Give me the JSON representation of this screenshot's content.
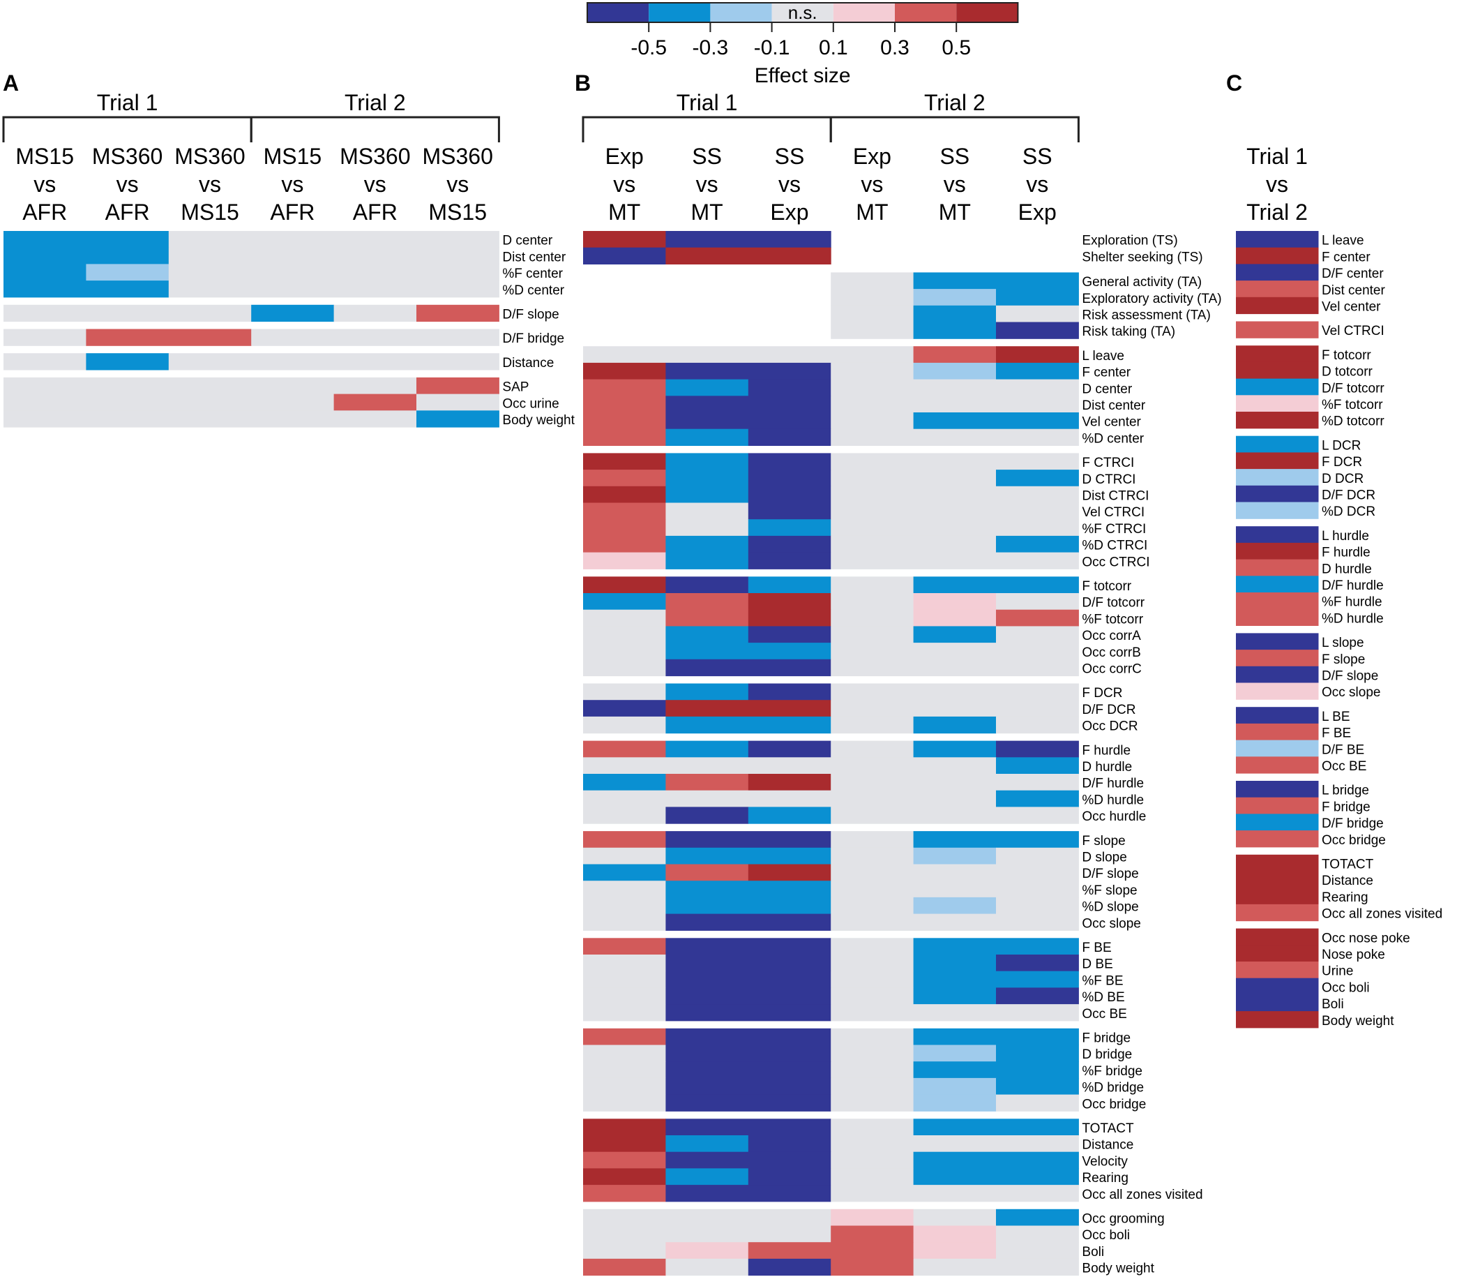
{
  "legend": {
    "title": "Effect size",
    "ns_label": "n.s.",
    "ticks": [
      "-0.5",
      "-0.3",
      "-0.1",
      "0.1",
      "0.3",
      "0.5"
    ],
    "bins": [
      "#323795",
      "#0a90d2",
      "#9fcbec",
      "#e2e3e7",
      "#f4cdd5",
      "#d25a5a",
      "#a92b2e"
    ]
  },
  "palette": {
    "D": "#323795",
    "B": "#0a90d2",
    "L": "#9fcbec",
    "N": "#e2e3e7",
    "P": "#f4cdd5",
    "R": "#d25a5a",
    "K": "#a92b2e"
  },
  "chart_data": [
    {
      "type": "heatmap",
      "panel": "A",
      "column_groups": [
        {
          "title": "Trial 1",
          "span": 3
        },
        {
          "title": "Trial 2",
          "span": 3
        }
      ],
      "columns": [
        [
          "MS15",
          "vs",
          "AFR"
        ],
        [
          "MS360",
          "vs",
          "AFR"
        ],
        [
          "MS360",
          "vs",
          "MS15"
        ],
        [
          "MS15",
          "vs",
          "AFR"
        ],
        [
          "MS360",
          "vs",
          "AFR"
        ],
        [
          "MS360",
          "vs",
          "MS15"
        ]
      ],
      "groups": [
        {
          "rows": [
            {
              "label": "D center",
              "cells": "BBNNNN"
            },
            {
              "label": "Dist center",
              "cells": "BBNNNN"
            },
            {
              "label": "%F center",
              "cells": "BLNNNN"
            },
            {
              "label": "%D center",
              "cells": "BBNNNN"
            }
          ]
        },
        {
          "rows": [
            {
              "label": "D/F slope",
              "cells": "NNNBNR"
            }
          ]
        },
        {
          "rows": [
            {
              "label": "D/F bridge",
              "cells": "NRRNNN"
            }
          ]
        },
        {
          "rows": [
            {
              "label": "Distance",
              "cells": "NBNNNN"
            }
          ]
        },
        {
          "rows": [
            {
              "label": "SAP",
              "cells": "NNNNNR"
            },
            {
              "label": "Occ urine",
              "cells": "NNNNRN"
            },
            {
              "label": "Body weight",
              "cells": "NNNNNB"
            }
          ]
        }
      ]
    },
    {
      "type": "heatmap",
      "panel": "B",
      "column_groups": [
        {
          "title": "Trial 1",
          "span": 3
        },
        {
          "title": "Trial 2",
          "span": 3
        }
      ],
      "columns": [
        [
          "Exp",
          "vs",
          "MT"
        ],
        [
          "SS",
          "vs",
          "MT"
        ],
        [
          "SS",
          "vs",
          "Exp"
        ],
        [
          "Exp",
          "vs",
          "MT"
        ],
        [
          "SS",
          "vs",
          "MT"
        ],
        [
          "SS",
          "vs",
          "Exp"
        ]
      ],
      "groups": [
        {
          "rows": [
            {
              "label": "Exploration (TS)",
              "cells": "KDDXXX"
            },
            {
              "label": "Shelter seeking (TS)",
              "cells": "DKKXXX"
            }
          ]
        },
        {
          "gap": "small",
          "rows": [
            {
              "label": "General activity (TA)",
              "cells": "XXXNBB"
            },
            {
              "label": "Exploratory activity (TA)",
              "cells": "XXXNLB"
            },
            {
              "label": "Risk assessment (TA)",
              "cells": "XXXNBN"
            },
            {
              "label": "Risk taking (TA)",
              "cells": "XXXNBD"
            }
          ]
        },
        {
          "rows": [
            {
              "label": "L leave",
              "cells": "NNNNRK"
            },
            {
              "label": "F center",
              "cells": "KDDNLB"
            },
            {
              "label": "D center",
              "cells": "RBDNNN"
            },
            {
              "label": "Dist center",
              "cells": "RDDNNN"
            },
            {
              "label": "Vel center",
              "cells": "RDDNBB"
            },
            {
              "label": "%D center",
              "cells": "RBDNNN"
            }
          ]
        },
        {
          "rows": [
            {
              "label": "F CTRCI",
              "cells": "KBDNNN"
            },
            {
              "label": "D CTRCI",
              "cells": "RBDNNB"
            },
            {
              "label": "Dist CTRCI",
              "cells": "KBDNNN"
            },
            {
              "label": "Vel CTRCI",
              "cells": "RNDNNN"
            },
            {
              "label": "%F CTRCI",
              "cells": "RNBNNN"
            },
            {
              "label": "%D CTRCI",
              "cells": "RBDNNB"
            },
            {
              "label": "Occ CTRCI",
              "cells": "PBDNNN"
            }
          ]
        },
        {
          "rows": [
            {
              "label": "F totcorr",
              "cells": "KDBNBB"
            },
            {
              "label": "D/F totcorr",
              "cells": "BRKNPN"
            },
            {
              "label": "%F totcorr",
              "cells": "NRKNPR"
            },
            {
              "label": "Occ corrA",
              "cells": "NBDNBN"
            },
            {
              "label": "Occ corrB",
              "cells": "NBBNNN"
            },
            {
              "label": "Occ corrC",
              "cells": "NDDNNN"
            }
          ]
        },
        {
          "rows": [
            {
              "label": "F DCR",
              "cells": "NBDNNN"
            },
            {
              "label": "D/F DCR",
              "cells": "DKKNNN"
            },
            {
              "label": "Occ DCR",
              "cells": "NBBNBN"
            }
          ]
        },
        {
          "rows": [
            {
              "label": "F hurdle",
              "cells": "RBDNBD"
            },
            {
              "label": "D hurdle",
              "cells": "NNNNNB"
            },
            {
              "label": "D/F hurdle",
              "cells": "BRKNNN"
            },
            {
              "label": "%D hurdle",
              "cells": "NNNNNB"
            },
            {
              "label": "Occ hurdle",
              "cells": "NDBNNN"
            }
          ]
        },
        {
          "rows": [
            {
              "label": "F slope",
              "cells": "RDDNBB"
            },
            {
              "label": "D slope",
              "cells": "NBBNLN"
            },
            {
              "label": "D/F slope",
              "cells": "BRKNNN"
            },
            {
              "label": "%F slope",
              "cells": "NBBNNN"
            },
            {
              "label": "%D slope",
              "cells": "NBBNLN"
            },
            {
              "label": "Occ slope",
              "cells": "NDDNNN"
            }
          ]
        },
        {
          "rows": [
            {
              "label": "F BE",
              "cells": "RDDNBB"
            },
            {
              "label": "D BE",
              "cells": "NDDNBD"
            },
            {
              "label": "%F BE",
              "cells": "NDDNBB"
            },
            {
              "label": "%D BE",
              "cells": "NDDNBD"
            },
            {
              "label": "Occ BE",
              "cells": "NDDNNN"
            }
          ]
        },
        {
          "rows": [
            {
              "label": "F bridge",
              "cells": "RDDNBB"
            },
            {
              "label": "D bridge",
              "cells": "NDDNLB"
            },
            {
              "label": "%F bridge",
              "cells": "NDDNBB"
            },
            {
              "label": "%D bridge",
              "cells": "NDDNLB"
            },
            {
              "label": "Occ bridge",
              "cells": "NDDNLN"
            }
          ]
        },
        {
          "rows": [
            {
              "label": "TOTACT",
              "cells": "KDDNBB"
            },
            {
              "label": "Distance",
              "cells": "KBDNNN"
            },
            {
              "label": "Velocity",
              "cells": "RDDNBB"
            },
            {
              "label": "Rearing",
              "cells": "KBDNBB"
            },
            {
              "label": "Occ all zones visited",
              "cells": "RDDNNN"
            }
          ]
        },
        {
          "rows": [
            {
              "label": "Occ grooming",
              "cells": "NNNPNB"
            },
            {
              "label": "Occ boli",
              "cells": "NNNRPN"
            },
            {
              "label": "Boli",
              "cells": "NPRRPN"
            },
            {
              "label": "Body weight",
              "cells": "RNDRNN"
            }
          ]
        }
      ]
    },
    {
      "type": "heatmap",
      "panel": "C",
      "column_groups": [],
      "columns": [
        [
          "Trial 1",
          "vs",
          "Trial 2"
        ]
      ],
      "groups": [
        {
          "rows": [
            {
              "label": "L leave",
              "cells": "D"
            },
            {
              "label": "F center",
              "cells": "K"
            },
            {
              "label": "D/F center",
              "cells": "D"
            },
            {
              "label": "Dist center",
              "cells": "R"
            },
            {
              "label": "Vel center",
              "cells": "K"
            }
          ]
        },
        {
          "rows": [
            {
              "label": "Vel CTRCI",
              "cells": "R"
            }
          ]
        },
        {
          "rows": [
            {
              "label": "F totcorr",
              "cells": "K"
            },
            {
              "label": "D totcorr",
              "cells": "K"
            },
            {
              "label": "D/F totcorr",
              "cells": "B"
            },
            {
              "label": "%F totcorr",
              "cells": "P"
            },
            {
              "label": "%D totcorr",
              "cells": "K"
            }
          ]
        },
        {
          "rows": [
            {
              "label": "L DCR",
              "cells": "B"
            },
            {
              "label": "F DCR",
              "cells": "K"
            },
            {
              "label": "D DCR",
              "cells": "L"
            },
            {
              "label": "D/F DCR",
              "cells": "D"
            },
            {
              "label": "%D DCR",
              "cells": "L"
            }
          ]
        },
        {
          "rows": [
            {
              "label": "L hurdle",
              "cells": "D"
            },
            {
              "label": "F hurdle",
              "cells": "K"
            },
            {
              "label": "D hurdle",
              "cells": "R"
            },
            {
              "label": "D/F hurdle",
              "cells": "B"
            },
            {
              "label": "%F hurdle",
              "cells": "R"
            },
            {
              "label": "%D hurdle",
              "cells": "R"
            }
          ]
        },
        {
          "rows": [
            {
              "label": "L slope",
              "cells": "D"
            },
            {
              "label": "F slope",
              "cells": "R"
            },
            {
              "label": "D/F slope",
              "cells": "D"
            },
            {
              "label": "Occ slope",
              "cells": "P"
            }
          ]
        },
        {
          "rows": [
            {
              "label": "L BE",
              "cells": "D"
            },
            {
              "label": "F BE",
              "cells": "R"
            },
            {
              "label": "D/F BE",
              "cells": "L"
            },
            {
              "label": "Occ BE",
              "cells": "R"
            }
          ]
        },
        {
          "rows": [
            {
              "label": "L bridge",
              "cells": "D"
            },
            {
              "label": "F bridge",
              "cells": "R"
            },
            {
              "label": "D/F bridge",
              "cells": "B"
            },
            {
              "label": "Occ bridge",
              "cells": "R"
            }
          ]
        },
        {
          "rows": [
            {
              "label": "TOTACT",
              "cells": "K"
            },
            {
              "label": "Distance",
              "cells": "K"
            },
            {
              "label": "Rearing",
              "cells": "K"
            },
            {
              "label": "Occ all zones visited",
              "cells": "R"
            }
          ]
        },
        {
          "rows": [
            {
              "label": "Occ nose poke",
              "cells": "K"
            },
            {
              "label": "Nose poke",
              "cells": "K"
            },
            {
              "label": "Urine",
              "cells": "R"
            },
            {
              "label": "Occ boli",
              "cells": "D"
            },
            {
              "label": "Boli",
              "cells": "D"
            },
            {
              "label": "Body weight",
              "cells": "K"
            }
          ]
        }
      ]
    }
  ]
}
